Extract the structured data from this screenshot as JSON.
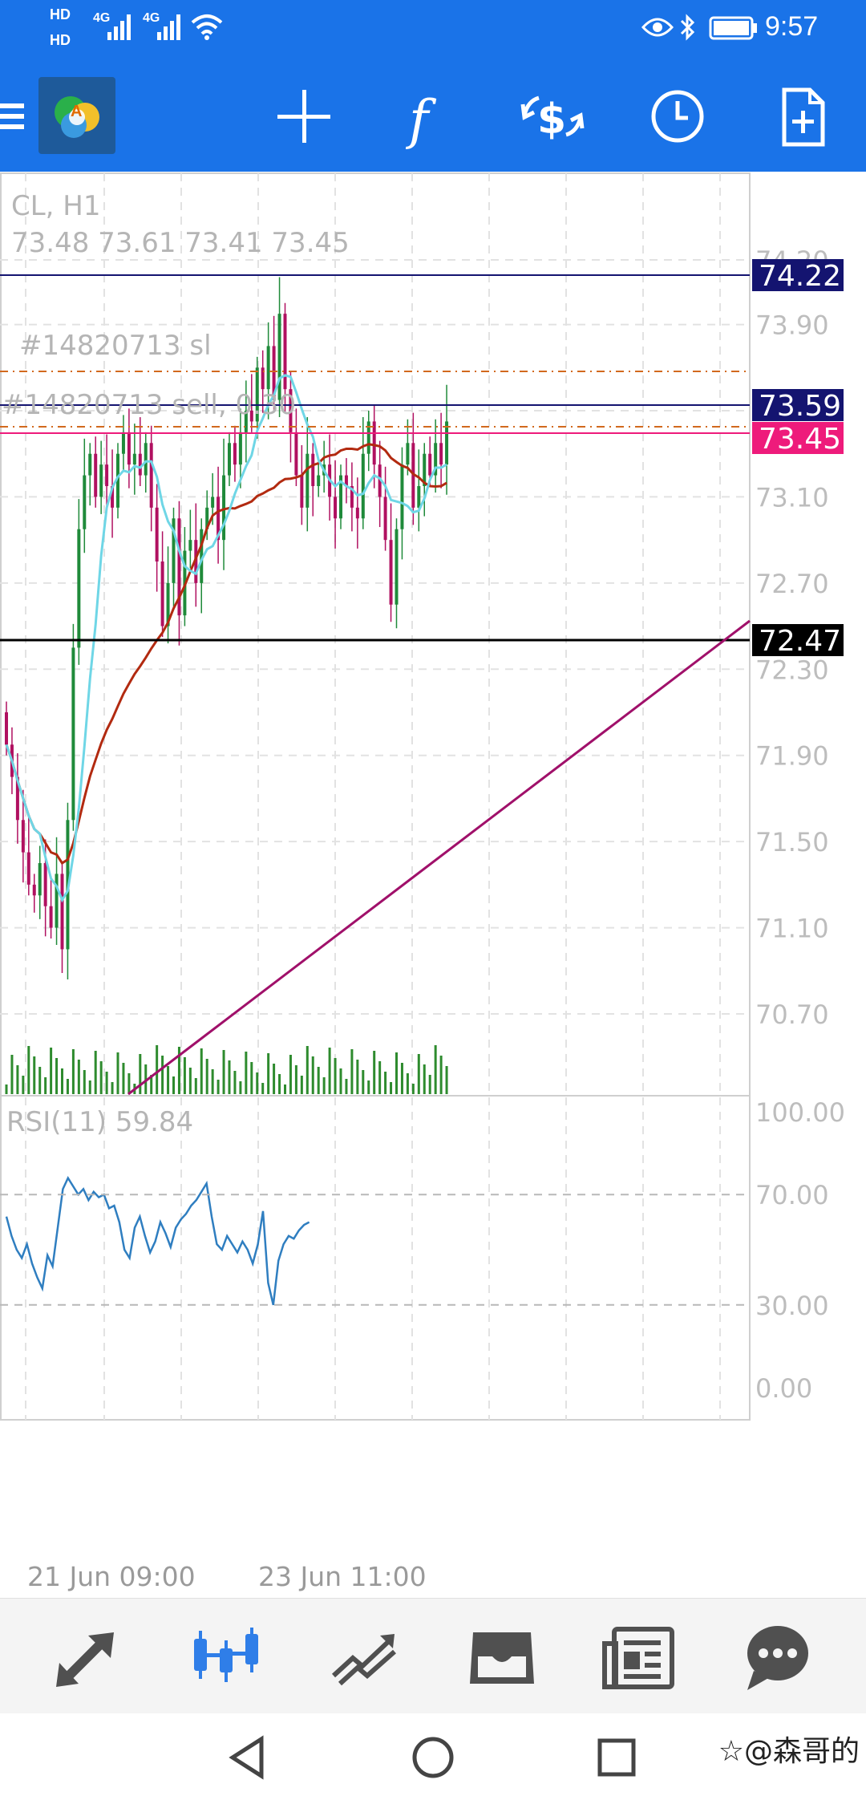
{
  "status_bar": {
    "time": "9:57",
    "hd1": "HD",
    "hd2": "HD",
    "net1": "4G",
    "net2": "4G"
  },
  "header": {
    "icons": [
      "menu-icon",
      "app-logo",
      "crosshair-icon",
      "indicators-icon",
      "exchange-icon",
      "clock-icon",
      "new-document-icon"
    ],
    "logo_letter": "A"
  },
  "chart": {
    "symbol_line": "CL, H1",
    "ohlc_line": "73.48 73.61 73.41 73.45",
    "order_sl_label": "#14820713 sl",
    "order_sell_label": "#14820713 sell, 0.30",
    "price_axis": [
      "74.20",
      "73.90",
      "73.50",
      "73.10",
      "72.70",
      "72.30",
      "71.90",
      "71.50",
      "71.10",
      "70.70"
    ],
    "price_tags": {
      "high": "74.22",
      "ask": "73.59",
      "bid": "73.45",
      "low_line": "72.47"
    },
    "rsi_label": "RSI(11) 59.84",
    "rsi_axis": [
      "100.00",
      "70.00",
      "30.00",
      "0.00"
    ],
    "time_axis": [
      "21 Jun 09:00",
      "23 Jun 11:00"
    ],
    "colors": {
      "bull": "#1f8a3a",
      "bear": "#b01060",
      "fast_ma": "#6fd6e6",
      "slow_ma": "#b22a10",
      "trendline": "#a0106a",
      "high_line": "#141470",
      "bid_tag": "#ee1b7b",
      "ask_tag": "#141470",
      "sl_line": "#d2691e",
      "rsi": "#2f7ec0",
      "volume": "#2e8b2e"
    }
  },
  "tab_bar": {
    "tabs": [
      "quotes-icon",
      "chart-icon",
      "trade-icon",
      "history-icon",
      "news-icon",
      "messages-icon"
    ],
    "active": 1
  },
  "nav_bar": {
    "buttons": [
      "back-icon",
      "home-icon",
      "recents-icon"
    ]
  },
  "watermark": "☆@森哥的"
}
